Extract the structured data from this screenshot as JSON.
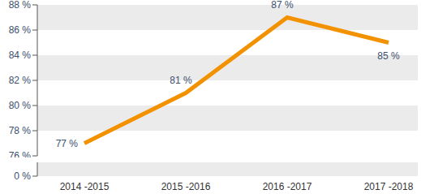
{
  "chart_data": {
    "type": "line",
    "categories": [
      "2014 -2015",
      "2015 -2016",
      "2016 -2017",
      "2017 -2018"
    ],
    "values": [
      77,
      81,
      87,
      85
    ],
    "value_labels": [
      "77 %",
      "81 %",
      "87 %",
      "85 %"
    ],
    "data_labels": true,
    "color": "#f39200",
    "ylim": [
      0,
      88
    ],
    "yticks": [
      {
        "value": 0,
        "label": "0 %"
      },
      {
        "value": 76,
        "label": "76 %"
      },
      {
        "value": 78,
        "label": "78 %"
      },
      {
        "value": 80,
        "label": "80 %"
      },
      {
        "value": 82,
        "label": "82 %"
      },
      {
        "value": 84,
        "label": "84 %"
      },
      {
        "value": 86,
        "label": "86 %"
      },
      {
        "value": 88,
        "label": "88 %"
      }
    ],
    "grid": true
  }
}
